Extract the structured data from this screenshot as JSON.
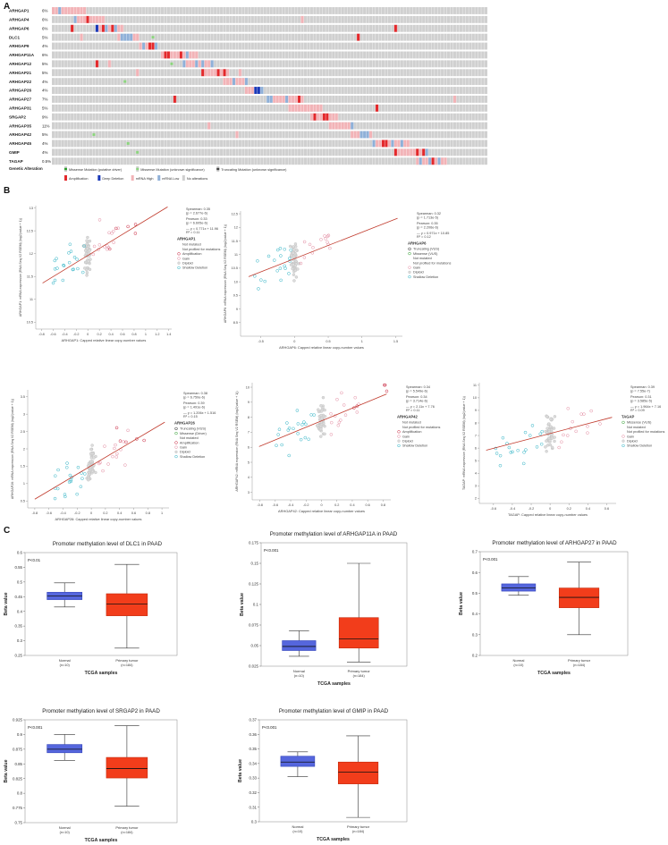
{
  "panel_letters": {
    "a": "A",
    "b": "B",
    "c": "C"
  },
  "oncoprint": {
    "genes": [
      {
        "name": "ARHGAP1",
        "pct": "6%"
      },
      {
        "name": "ARHGAP4",
        "pct": "6%"
      },
      {
        "name": "ARHGAP6",
        "pct": "6%"
      },
      {
        "name": "DLC1",
        "pct": "5%"
      },
      {
        "name": "ARHGAP9",
        "pct": "4%"
      },
      {
        "name": "ARHGAP11A",
        "pct": "6%"
      },
      {
        "name": "ARHGAP12",
        "pct": "5%"
      },
      {
        "name": "ARHGAP21",
        "pct": "5%"
      },
      {
        "name": "ARHGAP22",
        "pct": "4%"
      },
      {
        "name": "ARHGAP26",
        "pct": "4%"
      },
      {
        "name": "ARHGAP27",
        "pct": "7%"
      },
      {
        "name": "ARHGAP31",
        "pct": "5%"
      },
      {
        "name": "SRGAP2",
        "pct": "9%"
      },
      {
        "name": "ARHGAP35",
        "pct": "11%"
      },
      {
        "name": "ARHGAP42",
        "pct": "5%"
      },
      {
        "name": "ARHGAP45",
        "pct": "4%"
      },
      {
        "name": "GMIP",
        "pct": "4%"
      },
      {
        "name": "TAGAP",
        "pct": "0.5%"
      }
    ],
    "legend_title": "Genetic Alteration",
    "legend_row1": [
      "Missense Mutation (putative driver)",
      "Missense Mutation (unknown significance)",
      "Truncating Mutation (unknown significance)"
    ],
    "legend_row2": [
      "Amplification",
      "Deep Deletion",
      "mRNA High",
      "mRNA Low",
      "No alterations"
    ],
    "colors": {
      "base": "#d0d0d0",
      "amp": "#e3282b",
      "del": "#1a38b8",
      "high": "#f2b3b7",
      "low": "#8fb0d8",
      "mis_driver": "#2e9e2e",
      "mis_unknown": "#8cd47e",
      "trunc": "#444444"
    }
  },
  "chart_data": [
    {
      "type": "scatter",
      "title": "ARHGAP1",
      "xlabel": "ARHGAP1: Capped relative linear copy-number values",
      "ylabel": "ARHGAP1: mRNA expression (RNA Seq V2 RSEM) (log2(value + 1))",
      "xlim": [
        -0.9,
        1.45
      ],
      "ylim": [
        10.35,
        13.05
      ],
      "xticks": [
        "-0.8",
        "-0.6",
        "-0.4",
        "-0.2",
        "0",
        "0.2",
        "0.4",
        "0.6",
        "0.8",
        "1",
        "1.2",
        "1.4"
      ],
      "yticks": [
        "10.5",
        "11",
        "11.5",
        "12",
        "12.5",
        "13"
      ],
      "fit": {
        "slope": 0.771,
        "intercept": 11.96
      },
      "stats": [
        "Spearman: 0.35",
        "(p = 2.677e-6)",
        "Pearson: 0.33",
        "(p = 6.605e-6)",
        "— y = 0.771x + 11.96",
        "R² = 0.11"
      ],
      "legend": [
        {
          "label": "Not mutated",
          "kind": "none"
        },
        {
          "label": "Not profiled for mutations",
          "kind": "none"
        },
        {
          "label": "Amplification",
          "kind": "amp"
        },
        {
          "label": "Gain",
          "kind": "gain"
        },
        {
          "label": "Diploid",
          "kind": "dip"
        },
        {
          "label": "Shallow Deletion",
          "kind": "shal"
        }
      ]
    },
    {
      "type": "scatter",
      "title": "ARHGAP6",
      "xlabel": "ARHGAP6: Capped relative linear copy-number values",
      "ylabel": "ARHGAP6: mRNA expression (RNA Seq V2 RSEM) (log2(value + 1))",
      "xlim": [
        -0.8,
        1.6
      ],
      "ylim": [
        8.0,
        12.6
      ],
      "xticks": [
        "-0.5",
        "0",
        "0.5",
        "1",
        "1.5"
      ],
      "yticks": [
        "8.5",
        "9",
        "9.5",
        "10",
        "10.5",
        "11",
        "11.5",
        "12",
        "12.5"
      ],
      "fit": {
        "slope": 0.971,
        "intercept": 10.85
      },
      "stats": [
        "Spearman: 0.32",
        "(p = 1.713e-5)",
        "Pearson: 0.35",
        "(p = 2.206e-6)",
        "— y = 0.971x + 10.85",
        "R² = 0.12"
      ],
      "legend": [
        {
          "label": "Truncating (VUS)",
          "kind": "trunc"
        },
        {
          "label": "Missense (VUS)",
          "kind": "mis"
        },
        {
          "label": "Not mutated",
          "kind": "none"
        },
        {
          "label": "Not profiled for mutations",
          "kind": "none"
        },
        {
          "label": "Gain",
          "kind": "gain"
        },
        {
          "label": "Diploid",
          "kind": "dip"
        },
        {
          "label": "Shallow Deletion",
          "kind": "shal"
        }
      ]
    },
    {
      "type": "scatter",
      "title": "ARHGAP26",
      "xlabel": "ARHGAP26: Capped relative linear copy-number values",
      "ylabel": "ARHGAP26: mRNA expression (RNA Seq V2 RSEM) (log2(value + 1))",
      "xlim": [
        -0.9,
        1.1
      ],
      "ylim": [
        0.3,
        3.7
      ],
      "xticks": [
        "-0.8",
        "-0.6",
        "-0.4",
        "-0.2",
        "0",
        "0.2",
        "0.4",
        "0.6",
        "0.8",
        "1"
      ],
      "yticks": [
        "0.5",
        "1",
        "1.5",
        "2",
        "2.5",
        "3",
        "3.5"
      ],
      "fit": {
        "slope": 1.206,
        "intercept": 1.516
      },
      "stats": [
        "Spearman: 0.38",
        "(p = 6.750e-6)",
        "Pearson: 0.39",
        "(p = 1.491e-6)",
        "— y = 1.206x + 1.516",
        "R² = 0.15"
      ],
      "legend": [
        {
          "label": "Truncating (VUS)",
          "kind": "trunc"
        },
        {
          "label": "Missense (Driver)",
          "kind": "mis"
        },
        {
          "label": "Not mutated",
          "kind": "none"
        },
        {
          "label": "Amplification",
          "kind": "amp"
        },
        {
          "label": "Gain",
          "kind": "gain"
        },
        {
          "label": "Diploid",
          "kind": "dip"
        },
        {
          "label": "Shallow Deletion",
          "kind": "shal"
        }
      ]
    },
    {
      "type": "scatter",
      "title": "ARHGAP42",
      "xlabel": "ARHGAP42: Capped relative linear copy-number values",
      "ylabel": "ARHGAP42: mRNA expression (RNA Seq V2 RSEM) (log2(value + 1))",
      "xlim": [
        -0.9,
        0.9
      ],
      "ylim": [
        2.5,
        10.3
      ],
      "xticks": [
        "-0.8",
        "-0.6",
        "-0.4",
        "-0.2",
        "0",
        "0.2",
        "0.4",
        "0.6",
        "0.8"
      ],
      "yticks": [
        "3",
        "4",
        "5",
        "6",
        "7",
        "8",
        "9",
        "10"
      ],
      "fit": {
        "slope": 2.11,
        "intercept": 7.76
      },
      "stats": [
        "Spearman: 0.34",
        "(p = 5.549e-6)",
        "Pearson: 0.34",
        "(p = 3.714e-6)",
        "— y = 2.11x + 7.76",
        "R² = 0.11"
      ],
      "legend": [
        {
          "label": "Not mutated",
          "kind": "none"
        },
        {
          "label": "Not profiled for mutations",
          "kind": "none"
        },
        {
          "label": "Amplification",
          "kind": "amp"
        },
        {
          "label": "Gain",
          "kind": "gain"
        },
        {
          "label": "Diploid",
          "kind": "dip"
        },
        {
          "label": "Shallow Deletion",
          "kind": "shal"
        }
      ]
    },
    {
      "type": "scatter",
      "title": "TAGAP",
      "xlabel": "TAGAP: Capped relative linear copy-number values",
      "ylabel": "TAGAP: mRNA expression (RNA Seq V2 RSEM) (log2(value + 1))",
      "xlim": [
        -0.75,
        0.7
      ],
      "ylim": [
        1.6,
        11.2
      ],
      "xticks": [
        "-0.6",
        "-0.4",
        "-0.2",
        "0",
        "0.2",
        "0.4",
        "0.6"
      ],
      "yticks": [
        "2",
        "3",
        "4",
        "5",
        "6",
        "7",
        "8",
        "9",
        "10",
        "11"
      ],
      "fit": {
        "slope": 1.964,
        "intercept": 7.16
      },
      "stats": [
        "Spearman: 0.39",
        "(p = 7.55e-7)",
        "Pearson: 0.31",
        "(p = 3.585e-5)",
        "— y = 1.964x + 7.16",
        "R² = 0.09"
      ],
      "legend": [
        {
          "label": "Missense (VUS)",
          "kind": "mis"
        },
        {
          "label": "Not mutated",
          "kind": "none"
        },
        {
          "label": "Not profiled for mutations",
          "kind": "none"
        },
        {
          "label": "Gain",
          "kind": "gain"
        },
        {
          "label": "Diploid",
          "kind": "dip"
        },
        {
          "label": "Shallow Deletion",
          "kind": "shal"
        }
      ]
    },
    {
      "type": "box",
      "title": "Promoter methylation level of DLC1 in PAAD",
      "xlabel": "TCGA samples",
      "ylabel": "Beta value",
      "pvalue": "P<0.01",
      "ylim": [
        0.25,
        0.6
      ],
      "yticks": [
        "0.25",
        "0.3",
        "0.35",
        "0.4",
        "0.45",
        "0.5",
        "0.55",
        "0.6"
      ],
      "groups": [
        {
          "label": "Normal",
          "n": "(n=10)",
          "whisker_low": 0.415,
          "q1": 0.44,
          "median": 0.452,
          "q3": 0.465,
          "whisker_high": 0.497
        },
        {
          "label": "Primary tumor",
          "n": "(n=184)",
          "whisker_low": 0.275,
          "q1": 0.385,
          "median": 0.425,
          "q3": 0.46,
          "whisker_high": 0.56
        }
      ]
    },
    {
      "type": "box",
      "title": "Promoter methylation level of ARHGAP11A in PAAD",
      "xlabel": "TCGA samples",
      "ylabel": "Beta value",
      "pvalue": "P<0.001",
      "ylim": [
        0.025,
        0.175
      ],
      "yticks": [
        "0.025",
        "0.05",
        "0.075",
        "0.1",
        "0.125",
        "0.15",
        "0.175"
      ],
      "groups": [
        {
          "label": "Normal",
          "n": "(n=10)",
          "whisker_low": 0.037,
          "q1": 0.044,
          "median": 0.049,
          "q3": 0.056,
          "whisker_high": 0.068
        },
        {
          "label": "Primary tumor",
          "n": "(n=184)",
          "whisker_low": 0.03,
          "q1": 0.047,
          "median": 0.058,
          "q3": 0.084,
          "whisker_high": 0.15
        }
      ]
    },
    {
      "type": "box",
      "title": "Promoter methylation level of ARHGAP27 in PAAD",
      "xlabel": "TCGA samples",
      "ylabel": "Beta value",
      "pvalue": "P<0.001",
      "ylim": [
        0.2,
        0.7
      ],
      "yticks": [
        "0.2",
        "0.3",
        "0.4",
        "0.5",
        "0.6",
        "0.7"
      ],
      "groups": [
        {
          "label": "Normal",
          "n": "(n=10)",
          "whisker_low": 0.49,
          "q1": 0.51,
          "median": 0.525,
          "q3": 0.545,
          "whisker_high": 0.58
        },
        {
          "label": "Primary tumor",
          "n": "(n=184)",
          "whisker_low": 0.3,
          "q1": 0.43,
          "median": 0.48,
          "q3": 0.525,
          "whisker_high": 0.65
        }
      ]
    },
    {
      "type": "box",
      "title": "Promoter methylation level of SRGAP2 in PAAD",
      "xlabel": "TCGA samples",
      "ylabel": "Beta value",
      "pvalue": "P<0.001",
      "ylim": [
        0.75,
        0.925
      ],
      "yticks": [
        "0.75",
        "0.775",
        "0.8",
        "0.825",
        "0.85",
        "0.875",
        "0.9",
        "0.925"
      ],
      "groups": [
        {
          "label": "Normal",
          "n": "(n=10)",
          "whisker_low": 0.856,
          "q1": 0.869,
          "median": 0.875,
          "q3": 0.883,
          "whisker_high": 0.9
        },
        {
          "label": "Primary tumor",
          "n": "(n=184)",
          "whisker_low": 0.778,
          "q1": 0.826,
          "median": 0.842,
          "q3": 0.861,
          "whisker_high": 0.915
        }
      ]
    },
    {
      "type": "box",
      "title": "Promoter methylation level of GMIP in PAAD",
      "xlabel": "TCGA samples",
      "ylabel": "Beta value",
      "pvalue": "P<0.001",
      "ylim": [
        0.3,
        0.37
      ],
      "yticks": [
        "0.3",
        "0.31",
        "0.32",
        "0.33",
        "0.34",
        "0.35",
        "0.36",
        "0.37"
      ],
      "groups": [
        {
          "label": "Normal",
          "n": "(n=10)",
          "whisker_low": 0.331,
          "q1": 0.338,
          "median": 0.341,
          "q3": 0.345,
          "whisker_high": 0.348
        },
        {
          "label": "Primary tumor",
          "n": "(n=184)",
          "whisker_low": 0.303,
          "q1": 0.326,
          "median": 0.334,
          "q3": 0.341,
          "whisker_high": 0.359
        }
      ]
    }
  ]
}
